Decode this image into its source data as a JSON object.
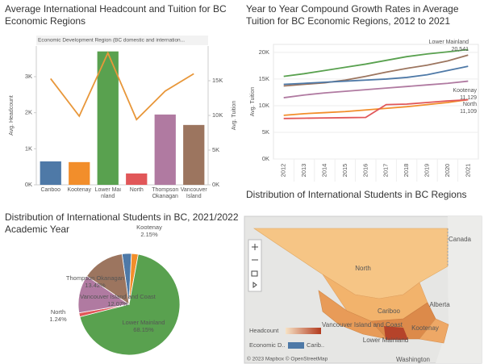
{
  "chart_data": [
    {
      "type": "combo",
      "title": "Average International Headcount and Tuition for BC Economic Regions",
      "header": "Economic Development Region (BC domestic and internation...",
      "categories": [
        "Cariboo",
        "Kootenay",
        "Lower Mainland",
        "North",
        "Thompson Okanagan",
        "Vancouver Island"
      ],
      "ylabel": "Avg. Headcount",
      "y2label": "Avg. Tuition",
      "series": [
        {
          "type": "bar",
          "colors": [
            "#4e79a7",
            "#f28e2b",
            "#59a14f",
            "#e15759",
            "#b07aa1",
            "#9c755f"
          ],
          "values": [
            650,
            630,
            3700,
            315,
            1950,
            1660
          ]
        },
        {
          "type": "line",
          "axis": "y2",
          "color": "#e8973a",
          "values": [
            15300,
            9900,
            19000,
            9400,
            13500,
            16000
          ]
        }
      ],
      "ylim": [
        0,
        3850
      ],
      "yticks": [
        {
          "value": 0,
          "label": "0K"
        },
        {
          "value": 1000,
          "label": "1K"
        },
        {
          "value": 2000,
          "label": "2K"
        },
        {
          "value": 3000,
          "label": "3K"
        }
      ],
      "y2lim": [
        0,
        20000
      ],
      "y2ticks": [
        {
          "value": 0,
          "label": "0K"
        },
        {
          "value": 5000,
          "label": "5K"
        },
        {
          "value": 10000,
          "label": "10K"
        },
        {
          "value": 15000,
          "label": "15K"
        }
      ]
    },
    {
      "type": "line",
      "title": "Year to Year Compound Growth Rates in Average Tuition for BC Economic Regions, 2012 to 2021",
      "ylabel": "Avg. Tuition",
      "categories": [
        "2012",
        "2013",
        "2014",
        "2015",
        "2016",
        "2017",
        "2018",
        "2019",
        "2020",
        "2021"
      ],
      "series": [
        {
          "name": "Lower Mainland",
          "color": "#59a14f",
          "values": [
            15500,
            16000,
            16600,
            17200,
            17800,
            18500,
            19200,
            19700,
            20100,
            20541
          ],
          "value_labels": [
            null,
            null,
            null,
            null,
            null,
            null,
            null,
            null,
            null,
            "20,541"
          ]
        },
        {
          "color": "#9c755f",
          "values": [
            13700,
            14000,
            14300,
            14800,
            15500,
            16300,
            17000,
            17600,
            18400,
            19500
          ]
        },
        {
          "color": "#4e79a7",
          "values": [
            14000,
            14200,
            14400,
            14600,
            14800,
            15000,
            15300,
            15800,
            16600,
            17400
          ]
        },
        {
          "color": "#b07aa1",
          "values": [
            11500,
            12000,
            12400,
            12700,
            13000,
            13300,
            13600,
            13900,
            14200,
            14600
          ]
        },
        {
          "name": "Kootenay",
          "color": "#f28e2b",
          "values": [
            8200,
            8500,
            8700,
            8900,
            9200,
            9500,
            9800,
            10200,
            10600,
            11129
          ],
          "value_labels": [
            null,
            null,
            null,
            null,
            null,
            null,
            null,
            null,
            null,
            "11,129"
          ]
        },
        {
          "name": "North",
          "color": "#e15759",
          "values": [
            7600,
            7650,
            7700,
            7750,
            7800,
            10200,
            10300,
            10600,
            10900,
            11109
          ],
          "value_labels": [
            null,
            null,
            null,
            null,
            null,
            null,
            null,
            null,
            null,
            "11,109"
          ]
        }
      ],
      "ylim": [
        0,
        21500
      ],
      "yticks": [
        {
          "value": 0,
          "label": "0K"
        },
        {
          "value": 5000,
          "label": "5K"
        },
        {
          "value": 10000,
          "label": "10K"
        },
        {
          "value": 15000,
          "label": "15K"
        },
        {
          "value": 20000,
          "label": "20K"
        }
      ],
      "grid": true
    },
    {
      "type": "pie",
      "title": "Distribution of International Students in BC, 2021/2022 Academic Year",
      "categories": [
        null,
        "Kootenay",
        "Lower Mainland",
        "North",
        "Vancouver Island and Coast",
        "Thompson Okanagan"
      ],
      "values": [
        2.97,
        2.15,
        68.15,
        1.24,
        12.07,
        13.42
      ],
      "value_labels": [
        null,
        "2.15%",
        "68.15%",
        "1.24%",
        "12.07%",
        "13.42%"
      ],
      "colors": [
        "#4e79a7",
        "#f28e2b",
        "#59a14f",
        "#e15759",
        "#b07aa1",
        "#9c755f"
      ]
    }
  ],
  "map": {
    "title": "Distribution of International Students in BC Regions",
    "regions": [
      "North",
      "Cariboo",
      "Vancouver Island and Coast",
      "Kootenay",
      "Lower Mainland"
    ],
    "places": [
      "Canada",
      "Alberta",
      "Washington"
    ],
    "legend_title": "Headcount",
    "filter_label": "Economic D..",
    "filter_value": "Carib..",
    "attribution": "© 2023 Mapbox © OpenStreetMap"
  }
}
